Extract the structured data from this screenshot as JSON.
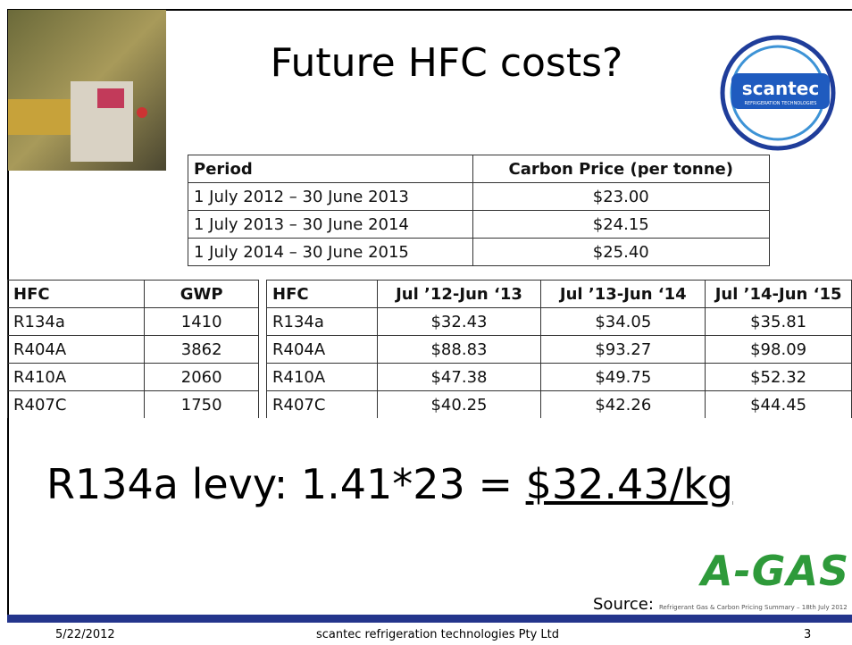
{
  "header": {
    "title": "Future HFC costs?"
  },
  "logo": {
    "name": "scantec",
    "tagline": "REFRIGERATION TECHNOLOGIES"
  },
  "carbon_table": {
    "columns": [
      "Period",
      "Carbon Price (per tonne)"
    ],
    "rows": [
      [
        "1 July 2012 – 30 June 2013",
        "$23.00"
      ],
      [
        "1 July 2013 – 30 June 2014",
        "$24.15"
      ],
      [
        "1 July 2014 – 30 June 2015",
        "$25.40"
      ]
    ]
  },
  "gwp_table": {
    "columns": [
      "HFC",
      "GWP"
    ],
    "rows": [
      [
        "R134a",
        "1410"
      ],
      [
        "R404A",
        "3862"
      ],
      [
        "R410A",
        "2060"
      ],
      [
        "R407C",
        "1750"
      ]
    ]
  },
  "cost_table": {
    "columns": [
      "HFC",
      "Jul ’12-Jun ‘13",
      "Jul ’13-Jun ‘14",
      "Jul ’14-Jun ‘15"
    ],
    "rows": [
      [
        "R134a",
        "$32.43",
        "$34.05",
        "$35.81"
      ],
      [
        "R404A",
        "$88.83",
        "$93.27",
        "$98.09"
      ],
      [
        "R410A",
        "$47.38",
        "$49.75",
        "$52.32"
      ],
      [
        "R407C",
        "$40.25",
        "$42.26",
        "$44.45"
      ]
    ]
  },
  "levy": {
    "text": "R134a levy: 1.41*23 = ",
    "result": "$32.43/kg"
  },
  "source": {
    "label": "Source:",
    "brand": "A-GAS",
    "reference": "Refrigerant Gas & Carbon Pricing Summary – 18th July 2012"
  },
  "footer": {
    "date": "5/22/2012",
    "company": "scantec refrigeration technologies Pty Ltd",
    "page": "3"
  }
}
